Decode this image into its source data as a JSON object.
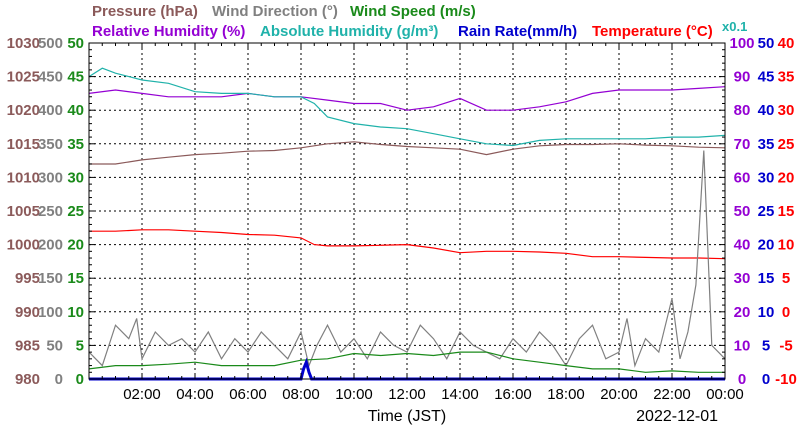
{
  "chart_data": {
    "type": "line",
    "x_axis": {
      "label": "Time (JST)",
      "date": "2022-12-01",
      "ticks": [
        "02:00",
        "04:00",
        "06:00",
        "08:00",
        "10:00",
        "12:00",
        "14:00",
        "16:00",
        "18:00",
        "20:00",
        "22:00",
        "00:00"
      ],
      "range_hours": [
        0,
        24
      ]
    },
    "legend": [
      {
        "key": "pressure",
        "text": "Pressure (hPa)",
        "color": "#8b5a5a"
      },
      {
        "key": "wind_dir",
        "text": "Wind Direction (°)",
        "color": "#808080"
      },
      {
        "key": "wind_speed",
        "text": "Wind Speed (m/s)",
        "color": "#1a8a1a"
      },
      {
        "key": "rh",
        "text": "Relative Humidity (%)",
        "color": "#9400d3"
      },
      {
        "key": "ah",
        "text": "Absolute Humidity (g/m³)",
        "color": "#20b2aa"
      },
      {
        "key": "rain",
        "text": "Rain Rate(mm/h)",
        "color": "#0000cd"
      },
      {
        "key": "temp",
        "text": "Temperature (°C)",
        "color": "#ff0000"
      }
    ],
    "x01_label": "x0.1",
    "axes": {
      "pressure": {
        "color": "#8b5a5a",
        "ylim": [
          980,
          1030
        ],
        "ticks": [
          "1030",
          "1025",
          "1020",
          "1015",
          "1010",
          "1005",
          "1000",
          "995",
          "990",
          "985",
          "980"
        ]
      },
      "wind_dir": {
        "color": "#808080",
        "ylim": [
          0,
          500
        ],
        "ticks": [
          "500",
          "450",
          "400",
          "350",
          "300",
          "250",
          "200",
          "150",
          "100",
          "50",
          "0"
        ]
      },
      "wind_speed": {
        "color": "#1a8a1a",
        "ylim": [
          0,
          50
        ],
        "ticks": [
          "50",
          "45",
          "40",
          "35",
          "30",
          "25",
          "20",
          "15",
          "10",
          "5",
          "0"
        ]
      },
      "rh": {
        "color": "#9400d3",
        "ylim": [
          0,
          100
        ],
        "ticks": [
          "100",
          "90",
          "80",
          "70",
          "60",
          "50",
          "40",
          "30",
          "20",
          "10",
          "0"
        ]
      },
      "rain": {
        "color": "#0000cd",
        "ylim": [
          0,
          50
        ],
        "ticks": [
          "50",
          "45",
          "40",
          "35",
          "30",
          "25",
          "20",
          "15",
          "10",
          "5",
          "0"
        ]
      },
      "temp": {
        "color": "#ff0000",
        "ylim": [
          -10,
          40
        ],
        "ticks": [
          "40",
          "35",
          "30",
          "25",
          "20",
          "15",
          "10",
          "5",
          "0",
          "-5",
          "-10"
        ]
      }
    },
    "series": [
      {
        "name": "Pressure (hPa)",
        "color": "#8b5a5a",
        "axis": "pressure",
        "x": [
          0,
          1,
          2,
          3,
          4,
          5,
          6,
          7,
          8,
          9,
          10,
          11,
          12,
          13,
          14,
          15,
          16,
          17,
          18,
          19,
          20,
          21,
          22,
          23,
          24
        ],
        "y": [
          1012.0,
          1012.0,
          1012.6,
          1013.0,
          1013.4,
          1013.6,
          1013.9,
          1014.0,
          1014.4,
          1015.0,
          1015.3,
          1014.9,
          1014.6,
          1014.4,
          1014.2,
          1013.4,
          1014.2,
          1014.7,
          1014.9,
          1014.9,
          1015.0,
          1014.8,
          1014.7,
          1014.5,
          1014.4
        ]
      },
      {
        "name": "Relative Humidity (%)",
        "color": "#9400d3",
        "axis": "rh",
        "x": [
          0,
          1,
          2,
          3,
          4,
          5,
          6,
          7,
          8,
          9,
          10,
          11,
          12,
          13,
          14,
          15,
          16,
          17,
          18,
          19,
          20,
          21,
          22,
          23,
          24
        ],
        "y": [
          85.0,
          86.0,
          85.0,
          84.0,
          84.0,
          84.0,
          85.0,
          84.0,
          84.0,
          83.0,
          82.0,
          82.0,
          80.0,
          81.0,
          83.5,
          80.0,
          80.0,
          81.0,
          82.5,
          85.0,
          86.0,
          86.0,
          86.0,
          86.5,
          87.0
        ]
      },
      {
        "name": "Absolute Humidity (g/m³)",
        "color": "#20b2aa",
        "axis": "rh",
        "x": [
          0,
          0.5,
          1,
          1.5,
          2,
          3,
          4,
          5,
          6,
          7,
          8,
          8.5,
          9,
          10,
          11,
          12,
          13,
          14,
          15,
          16,
          17,
          18,
          19,
          20,
          21,
          22,
          23,
          24
        ],
        "y": [
          90.0,
          92.5,
          91.0,
          90.0,
          89.0,
          88.0,
          85.5,
          85.0,
          85.0,
          84.0,
          84.0,
          82.0,
          78.0,
          76.0,
          75.0,
          74.5,
          73.0,
          71.5,
          70.0,
          69.5,
          71.0,
          71.5,
          71.5,
          71.5,
          71.5,
          72.0,
          72.0,
          72.5
        ]
      },
      {
        "name": "Temperature (°C)",
        "color": "#ff0000",
        "axis": "temp",
        "x": [
          0,
          1,
          2,
          3,
          4,
          5,
          6,
          7,
          8,
          8.5,
          9,
          10,
          11,
          12,
          13,
          14,
          15,
          16,
          17,
          18,
          19,
          20,
          21,
          22,
          23,
          24
        ],
        "y": [
          12.0,
          12.0,
          12.2,
          12.2,
          12.0,
          11.8,
          11.5,
          11.4,
          11.0,
          10.0,
          9.8,
          9.8,
          9.9,
          10.0,
          9.5,
          8.8,
          9.0,
          9.0,
          8.9,
          8.7,
          8.2,
          8.2,
          8.1,
          8.0,
          8.0,
          7.9
        ]
      },
      {
        "name": "Wind Direction (°)",
        "color": "#808080",
        "axis": "wind_dir",
        "x": [
          0,
          0.5,
          1,
          1.5,
          1.8,
          2,
          2.5,
          3,
          3.5,
          4,
          4.5,
          5,
          5.5,
          6,
          6.5,
          7,
          7.5,
          8,
          8.3,
          8.6,
          9,
          9.5,
          10,
          10.5,
          11,
          11.5,
          12,
          12.5,
          13,
          13.5,
          14,
          14.5,
          15,
          15.5,
          16,
          16.5,
          17,
          17.5,
          18,
          18.5,
          19,
          19.5,
          20,
          20.3,
          20.6,
          21,
          21.5,
          22,
          22.3,
          22.6,
          22.9,
          23.2,
          23.5,
          24
        ],
        "y": [
          40,
          20,
          80,
          60,
          90,
          30,
          70,
          50,
          60,
          40,
          70,
          30,
          60,
          40,
          70,
          50,
          30,
          70,
          20,
          50,
          80,
          40,
          60,
          30,
          70,
          50,
          40,
          80,
          60,
          30,
          70,
          50,
          40,
          30,
          60,
          40,
          70,
          50,
          20,
          60,
          80,
          30,
          40,
          90,
          20,
          60,
          40,
          120,
          30,
          70,
          140,
          340,
          50,
          30
        ]
      },
      {
        "name": "Wind Speed (m/s)",
        "color": "#1a8a1a",
        "axis": "wind_speed",
        "x": [
          0,
          1,
          2,
          3,
          4,
          5,
          6,
          7,
          8,
          9,
          10,
          11,
          12,
          13,
          14,
          15,
          16,
          17,
          18,
          19,
          20,
          21,
          22,
          23,
          24
        ],
        "y": [
          1.5,
          2.0,
          2.0,
          2.2,
          2.5,
          2.0,
          2.0,
          2.0,
          2.8,
          3.0,
          3.8,
          3.5,
          3.8,
          3.5,
          4.0,
          4.0,
          3.0,
          2.5,
          2.0,
          1.5,
          1.5,
          1.0,
          1.2,
          1.0,
          1.0
        ]
      },
      {
        "name": "Rain Rate(mm/h)",
        "color": "#0000cd",
        "axis": "rain",
        "x": [
          0,
          8.0,
          8.1,
          8.2,
          8.3,
          8.4,
          24
        ],
        "y": [
          0,
          0,
          1.5,
          2.5,
          1.0,
          0,
          0
        ]
      }
    ]
  }
}
